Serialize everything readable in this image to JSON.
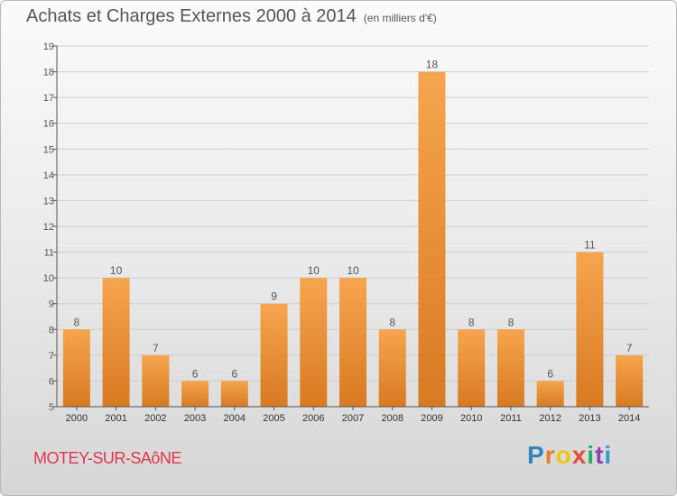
{
  "header": {
    "title": "Achats et Charges Externes 2000 à 2014",
    "unit": "(en milliers d'€)"
  },
  "footer": {
    "commune": "MOTEY-SUR-SAôNE",
    "brand": {
      "letters": [
        "P",
        "r",
        "o",
        "x",
        "i",
        "t",
        "i"
      ],
      "colors": [
        "#2e86c1",
        "#e67e22",
        "#f1c40f",
        "#e74c3c",
        "#27ae60",
        "#8e44ad",
        "#3498db"
      ]
    }
  },
  "colors": {
    "bar_light": "#f6a54e",
    "bar_dark": "#d87a22",
    "axis": "#555555",
    "grid": "#cfcfcf",
    "text": "#555555"
  },
  "chart_data": {
    "type": "bar",
    "categories": [
      "2000",
      "2001",
      "2002",
      "2003",
      "2004",
      "2005",
      "2006",
      "2007",
      "2008",
      "2009",
      "2010",
      "2011",
      "2012",
      "2013",
      "2014"
    ],
    "values": [
      8,
      10,
      7,
      6,
      6,
      9,
      10,
      10,
      8,
      18,
      8,
      8,
      6,
      11,
      7
    ],
    "ylim": [
      5,
      19
    ],
    "yticks": [
      5,
      6,
      7,
      8,
      9,
      10,
      11,
      12,
      13,
      14,
      15,
      16,
      17,
      18,
      19
    ],
    "grid": true,
    "data_labels": true
  }
}
